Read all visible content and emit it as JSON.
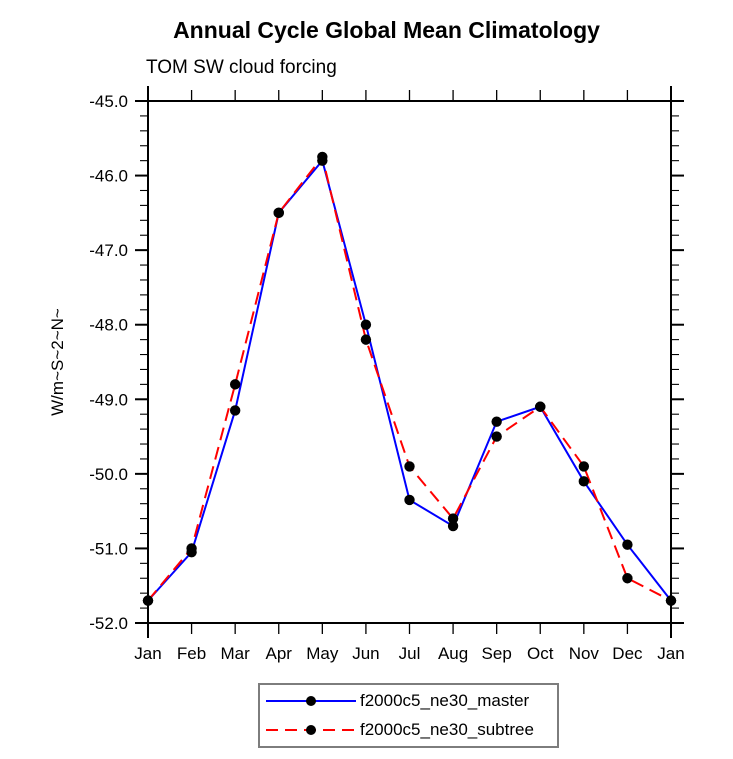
{
  "chart_data": {
    "type": "line",
    "title": "Annual Cycle Global Mean Climatology",
    "subtitle": "TOM SW cloud forcing",
    "ylabel": "W/m~S~2~N~",
    "xlabel": "",
    "categories": [
      "Jan",
      "Feb",
      "Mar",
      "Apr",
      "May",
      "Jun",
      "Jul",
      "Aug",
      "Sep",
      "Oct",
      "Nov",
      "Dec",
      "Jan"
    ],
    "y_ticks": [
      "-45.0",
      "-46.0",
      "-47.0",
      "-48.0",
      "-49.0",
      "-50.0",
      "-51.0",
      "-52.0"
    ],
    "ylim": [
      -52.0,
      -45.0
    ],
    "y_minor_tick_step": 0.2,
    "grid": false,
    "legend_position": "bottom-center",
    "frame_color": "#000000",
    "series": [
      {
        "name": "f2000c5_ne30_master",
        "color": "#0000ff",
        "style": "solid",
        "marker": "circle",
        "marker_color": "#000000",
        "values": [
          -51.7,
          -51.05,
          -49.15,
          -46.5,
          -45.8,
          -48.0,
          -50.35,
          -50.7,
          -49.3,
          -49.1,
          -50.1,
          -50.95,
          -51.7
        ]
      },
      {
        "name": "f2000c5_ne30_subtree",
        "color": "#ff0000",
        "style": "dashed",
        "marker": "circle",
        "marker_color": "#000000",
        "values": [
          -51.7,
          -51.0,
          -48.8,
          -46.5,
          -45.75,
          -48.2,
          -49.9,
          -50.6,
          -49.5,
          -49.1,
          -49.9,
          -51.4,
          -51.7
        ]
      }
    ]
  }
}
